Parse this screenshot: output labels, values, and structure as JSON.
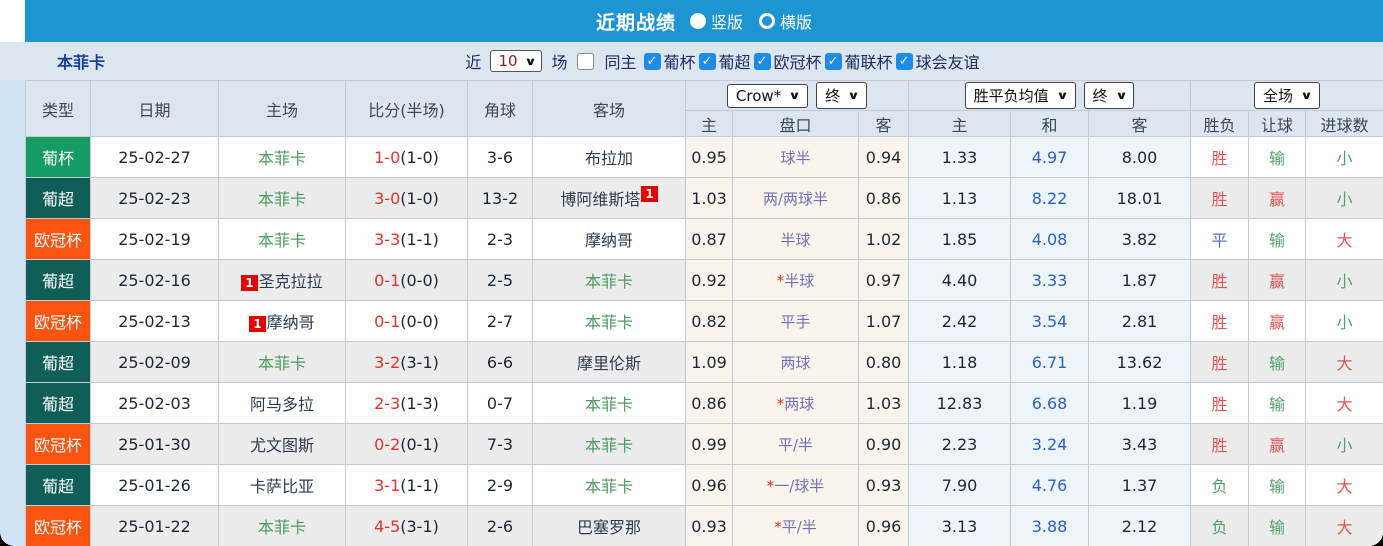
{
  "title_bar": {
    "title": "近期战绩",
    "layout_options": [
      {
        "label": "竖版",
        "selected": true
      },
      {
        "label": "横版",
        "selected": false
      }
    ]
  },
  "filter_bar": {
    "team": "本菲卡",
    "recent_label": "近",
    "recent_value": "10",
    "matches_label": "场",
    "same_home_label": "同主",
    "same_home_checked": false,
    "competitions": [
      {
        "label": "葡杯",
        "checked": true
      },
      {
        "label": "葡超",
        "checked": true
      },
      {
        "label": "欧冠杯",
        "checked": true
      },
      {
        "label": "葡联杯",
        "checked": true
      },
      {
        "label": "球会友谊",
        "checked": true
      }
    ]
  },
  "table": {
    "headers": {
      "type": "类型",
      "date": "日期",
      "home": "主场",
      "score": "比分(半场)",
      "corner": "角球",
      "away": "客场",
      "odds_home": "主",
      "handicap": "盘口",
      "odds_away": "客",
      "avg_home": "主",
      "avg_draw": "和",
      "avg_away": "客",
      "result": "胜负",
      "handicap_result": "让球",
      "goals_result": "进球数"
    },
    "selectors": {
      "odds_source": "Crow*",
      "odds_time": "终",
      "avg_source": "胜平负均值",
      "avg_time": "终",
      "scope": "全场"
    },
    "type_colors": {
      "葡杯": "#169b62",
      "葡超": "#0f5f58",
      "欧冠杯": "#fb5310"
    },
    "result_colors": {
      "胜": "c-red",
      "赢": "c-red",
      "大": "c-red",
      "负": "c-green",
      "输": "c-green",
      "小": "c-green",
      "平": "c-blue"
    },
    "rows": [
      {
        "type": "葡杯",
        "date": "25-02-27",
        "home": "本菲卡",
        "home_badge": null,
        "score_ft": "1-0",
        "score_ht": "(1-0)",
        "corner": "3-6",
        "away": "布拉加",
        "away_badge": null,
        "odds_home": "0.95",
        "handicap": "球半",
        "odds_away": "0.94",
        "avg_home": "1.33",
        "avg_draw": "4.97",
        "avg_away": "8.00",
        "result": "胜",
        "handicap_result": "输",
        "goals_result": "小"
      },
      {
        "type": "葡超",
        "date": "25-02-23",
        "home": "本菲卡",
        "home_badge": null,
        "score_ft": "3-0",
        "score_ht": "(1-0)",
        "corner": "13-2",
        "away": "博阿维斯塔",
        "away_badge": "1",
        "odds_home": "1.03",
        "handicap": "两/两球半",
        "odds_away": "0.86",
        "avg_home": "1.13",
        "avg_draw": "8.22",
        "avg_away": "18.01",
        "result": "胜",
        "handicap_result": "赢",
        "goals_result": "小"
      },
      {
        "type": "欧冠杯",
        "date": "25-02-19",
        "home": "本菲卡",
        "home_badge": null,
        "score_ft": "3-3",
        "score_ht": "(1-1)",
        "corner": "2-3",
        "away": "摩纳哥",
        "away_badge": null,
        "odds_home": "0.87",
        "handicap": "半球",
        "odds_away": "1.02",
        "avg_home": "1.85",
        "avg_draw": "4.08",
        "avg_away": "3.82",
        "result": "平",
        "handicap_result": "输",
        "goals_result": "大"
      },
      {
        "type": "葡超",
        "date": "25-02-16",
        "home": "圣克拉拉",
        "home_badge": "1",
        "score_ft": "0-1",
        "score_ht": "(0-0)",
        "corner": "2-5",
        "away": "本菲卡",
        "away_badge": null,
        "odds_home": "0.92",
        "handicap": "*半球",
        "odds_away": "0.97",
        "avg_home": "4.40",
        "avg_draw": "3.33",
        "avg_away": "1.87",
        "result": "胜",
        "handicap_result": "赢",
        "goals_result": "小"
      },
      {
        "type": "欧冠杯",
        "date": "25-02-13",
        "home": "摩纳哥",
        "home_badge": "1",
        "score_ft": "0-1",
        "score_ht": "(0-0)",
        "corner": "2-7",
        "away": "本菲卡",
        "away_badge": null,
        "odds_home": "0.82",
        "handicap": "平手",
        "odds_away": "1.07",
        "avg_home": "2.42",
        "avg_draw": "3.54",
        "avg_away": "2.81",
        "result": "胜",
        "handicap_result": "赢",
        "goals_result": "小"
      },
      {
        "type": "葡超",
        "date": "25-02-09",
        "home": "本菲卡",
        "home_badge": null,
        "score_ft": "3-2",
        "score_ht": "(3-1)",
        "corner": "6-6",
        "away": "摩里伦斯",
        "away_badge": null,
        "odds_home": "1.09",
        "handicap": "两球",
        "odds_away": "0.80",
        "avg_home": "1.18",
        "avg_draw": "6.71",
        "avg_away": "13.62",
        "result": "胜",
        "handicap_result": "输",
        "goals_result": "大"
      },
      {
        "type": "葡超",
        "date": "25-02-03",
        "home": "阿马多拉",
        "home_badge": null,
        "score_ft": "2-3",
        "score_ht": "(1-3)",
        "corner": "0-7",
        "away": "本菲卡",
        "away_badge": null,
        "odds_home": "0.86",
        "handicap": "*两球",
        "odds_away": "1.03",
        "avg_home": "12.83",
        "avg_draw": "6.68",
        "avg_away": "1.19",
        "result": "胜",
        "handicap_result": "输",
        "goals_result": "大"
      },
      {
        "type": "欧冠杯",
        "date": "25-01-30",
        "home": "尤文图斯",
        "home_badge": null,
        "score_ft": "0-2",
        "score_ht": "(0-1)",
        "corner": "7-3",
        "away": "本菲卡",
        "away_badge": null,
        "odds_home": "0.99",
        "handicap": "平/半",
        "odds_away": "0.90",
        "avg_home": "2.23",
        "avg_draw": "3.24",
        "avg_away": "3.43",
        "result": "胜",
        "handicap_result": "赢",
        "goals_result": "小"
      },
      {
        "type": "葡超",
        "date": "25-01-26",
        "home": "卡萨比亚",
        "home_badge": null,
        "score_ft": "3-1",
        "score_ht": "(1-1)",
        "corner": "2-9",
        "away": "本菲卡",
        "away_badge": null,
        "odds_home": "0.96",
        "handicap": "*一/球半",
        "odds_away": "0.93",
        "avg_home": "7.90",
        "avg_draw": "4.76",
        "avg_away": "1.37",
        "result": "负",
        "handicap_result": "输",
        "goals_result": "大"
      },
      {
        "type": "欧冠杯",
        "date": "25-01-22",
        "home": "本菲卡",
        "home_badge": null,
        "score_ft": "4-5",
        "score_ht": "(3-1)",
        "corner": "2-6",
        "away": "巴塞罗那",
        "away_badge": null,
        "odds_home": "0.93",
        "handicap": "*平/半",
        "odds_away": "0.96",
        "avg_home": "3.13",
        "avg_draw": "3.88",
        "avg_away": "2.12",
        "result": "负",
        "handicap_result": "输",
        "goals_result": "大"
      }
    ]
  }
}
